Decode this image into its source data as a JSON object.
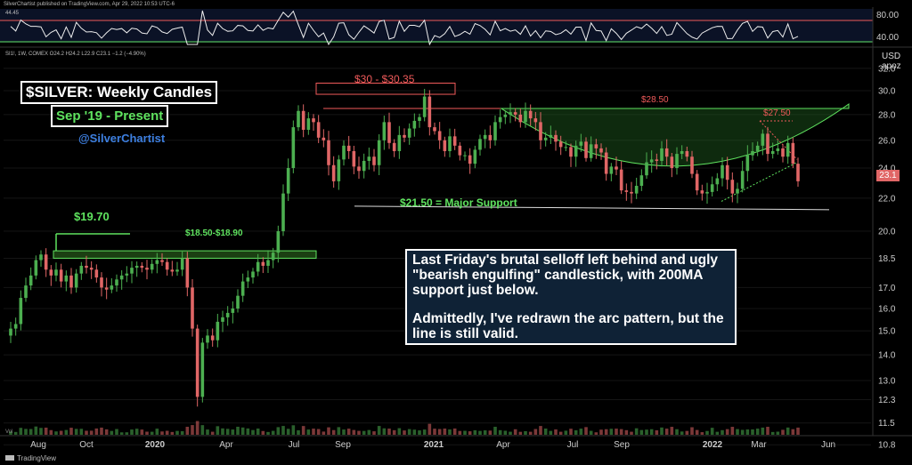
{
  "header": {
    "published": "SilverChartist published on TradingView.com, Apr 29, 2022 10:53 UTC-6",
    "symbol_line": "SI1!, 1W, COMEX O24.2 H24.2 L22.9 C23.1 −1.2 (−4.90%)",
    "rsi_value": "44.45",
    "price_badge": "23.1",
    "currency": "USD",
    "scale_mode": "apoz"
  },
  "annotations": {
    "title": "$SILVER: Weekly Candles",
    "period": "Sep '19 - Present",
    "handle": "@SilverChartist",
    "resistance_zone": "$30 - $30.35",
    "level_2850": "$28.50",
    "level_2750": "$27.50",
    "support": "$21.50 = Major Support",
    "level_1970": "$19.70",
    "zone_1850": "$18.50-$18.90",
    "note_p1": "Last Friday's brutal selloff left behind and ugly \"bearish engulfing\" candlestick, with 200MA support just below.",
    "note_p2": "Admittedly, I've redrawn the arc pattern, but the line is still valid.",
    "volume_label": "Vol",
    "footer": "TradingView"
  },
  "colors": {
    "up": "#4caf50",
    "down": "#e06666",
    "accent_green": "#5fe35f",
    "accent_red": "#ef5a5a",
    "note_bg": "#0f2236"
  },
  "chart_data": {
    "type": "candlestick",
    "title": "$SILVER: Weekly Candles",
    "y_scale": "log",
    "ylim": [
      10.8,
      32.0
    ],
    "y_ticks": [
      "32.0",
      "30.0",
      "28.0",
      "26.0",
      "24.0",
      "22.0",
      "20.0",
      "18.5",
      "17.0",
      "16.0",
      "15.0",
      "14.0",
      "13.0",
      "12.3",
      "11.5",
      "10.8"
    ],
    "x_ticks": [
      {
        "label": "Aug",
        "bold": false
      },
      {
        "label": "Oct",
        "bold": false
      },
      {
        "label": "2020",
        "bold": true
      },
      {
        "label": "Apr",
        "bold": false
      },
      {
        "label": "Jul",
        "bold": false
      },
      {
        "label": "Sep",
        "bold": false
      },
      {
        "label": "2021",
        "bold": true
      },
      {
        "label": "Apr",
        "bold": false
      },
      {
        "label": "Jul",
        "bold": false
      },
      {
        "label": "Sep",
        "bold": false
      },
      {
        "label": "2022",
        "bold": true
      },
      {
        "label": "Mar",
        "bold": false
      },
      {
        "label": "Jun",
        "bold": false
      }
    ],
    "series": [
      {
        "name": "SI1!",
        "closes": [
          15.1,
          15.3,
          16.5,
          17.1,
          17.6,
          18.4,
          18.7,
          17.9,
          17.6,
          17.9,
          17.3,
          17.6,
          17.0,
          17.7,
          18.1,
          18.0,
          17.9,
          17.5,
          17.0,
          16.9,
          17.1,
          17.4,
          17.6,
          17.7,
          18.0,
          18.1,
          18.0,
          17.9,
          18.2,
          18.4,
          18.3,
          17.9,
          17.8,
          17.9,
          18.5,
          17.0,
          15.1,
          12.4,
          14.5,
          14.8,
          14.6,
          15.4,
          15.6,
          15.8,
          16.0,
          16.6,
          17.3,
          17.5,
          17.8,
          18.3,
          18.1,
          18.4,
          18.8,
          20.0,
          22.3,
          24.0,
          27.0,
          28.3,
          26.8,
          27.7,
          27.4,
          26.2,
          26.0,
          24.2,
          23.1,
          24.6,
          25.6,
          25.2,
          24.1,
          23.8,
          24.5,
          24.8,
          24.2,
          26.0,
          27.4,
          25.8,
          25.2,
          26.4,
          26.2,
          26.9,
          27.5,
          27.8,
          29.5,
          27.0,
          26.7,
          26.0,
          25.2,
          26.3,
          25.6,
          24.9,
          24.9,
          24.3,
          25.3,
          26.1,
          26.4,
          26.0,
          27.4,
          27.8,
          28.0,
          28.2,
          28.0,
          27.4,
          28.3,
          27.7,
          27.4,
          26.0,
          26.2,
          26.4,
          25.9,
          25.5,
          25.5,
          24.8,
          25.6,
          25.9,
          24.7,
          25.7,
          25.4,
          25.1,
          23.6,
          24.1,
          23.9,
          22.5,
          22.4,
          22.3,
          22.8,
          23.5,
          24.4,
          24.6,
          24.5,
          25.4,
          24.8,
          24.0,
          25.0,
          25.2,
          24.8,
          23.6,
          22.5,
          22.3,
          22.4,
          22.9,
          23.3,
          24.2,
          23.2,
          22.3,
          22.6,
          23.8,
          24.9,
          25.2,
          25.6,
          26.5,
          25.0,
          25.2,
          25.4,
          24.8,
          25.8,
          24.3,
          23.1
        ]
      }
    ],
    "levels": [
      30.35,
      30.0,
      28.5,
      27.5,
      21.5,
      19.7,
      18.9,
      18.5
    ],
    "rsi": {
      "ylim": [
        0,
        100
      ],
      "ticks": [
        "80.00",
        "40.00"
      ],
      "last": 44.45
    }
  }
}
